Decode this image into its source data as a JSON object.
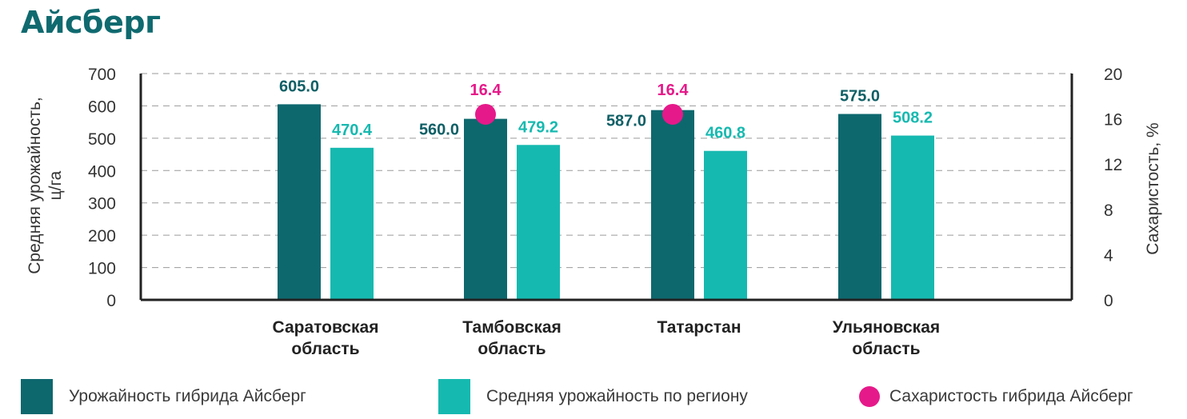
{
  "header": {
    "title": "Айсберг"
  },
  "colors": {
    "hybrid": "#0d686e",
    "region": "#16b9b0",
    "sugar": "#e6198a",
    "hybrid_label": "#0f5f66",
    "region_label": "#16b9b0",
    "sugar_label": "#e6198a",
    "axis": "#222222",
    "grid": "#9a9a9a"
  },
  "chart_data": {
    "type": "bar",
    "categories": [
      [
        "Саратовская",
        "область"
      ],
      [
        "Тамбовская",
        "область"
      ],
      [
        "Татарстан"
      ],
      [
        "Ульяновская",
        "область"
      ]
    ],
    "series": [
      {
        "name": "Урожайность гибрида Айсберг",
        "kind": "bar",
        "axis": "left",
        "values": [
          605.0,
          560.0,
          587.0,
          575.0
        ],
        "labels": [
          "605.0",
          "560.0",
          "587.0",
          "575.0"
        ]
      },
      {
        "name": "Средняя урожайность по региону",
        "kind": "bar",
        "axis": "left",
        "values": [
          470.4,
          479.2,
          460.8,
          508.2
        ],
        "labels": [
          "470.4",
          "479.2",
          "460.8",
          "508.2"
        ]
      },
      {
        "name": "Сахаристость гибрида Айсберг",
        "kind": "scatter",
        "axis": "right",
        "values": [
          null,
          16.4,
          16.4,
          null
        ],
        "labels": [
          "",
          "16.4",
          "16.4",
          ""
        ]
      }
    ],
    "ylabel": [
      "Средняя урожайность,",
      "ц/га"
    ],
    "y2label": "Сахаристость, %",
    "ylim": [
      0,
      700
    ],
    "yticks": [
      "0",
      "100",
      "200",
      "300",
      "400",
      "500",
      "600",
      "700"
    ],
    "y2lim": [
      0,
      20
    ],
    "y2ticks": [
      "0",
      "4",
      "8",
      "12",
      "16",
      "20"
    ],
    "grid": true,
    "legend_position": "bottom"
  },
  "legend": {
    "items": [
      {
        "label": "Урожайность гибрида Айсберг"
      },
      {
        "label": "Средняя урожайность по региону"
      },
      {
        "label": "Сахаристость гибрида Айсберг"
      }
    ]
  }
}
